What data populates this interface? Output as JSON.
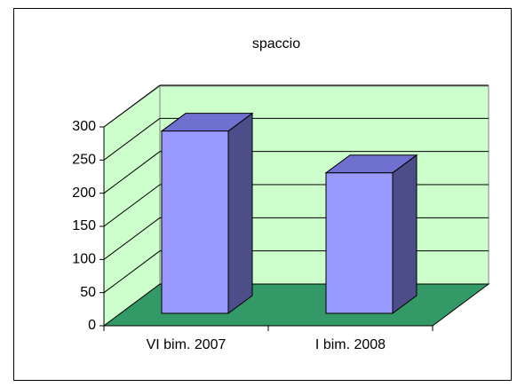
{
  "chart_data": {
    "type": "bar3d",
    "title": "spaccio",
    "categories": [
      "VI bim. 2007",
      "I bim. 2008"
    ],
    "values": [
      275,
      212
    ],
    "color": "#9999ff",
    "ylim": [
      0,
      300
    ],
    "yticks": [
      0,
      50,
      100,
      150,
      200,
      250,
      300
    ],
    "grid": true
  }
}
